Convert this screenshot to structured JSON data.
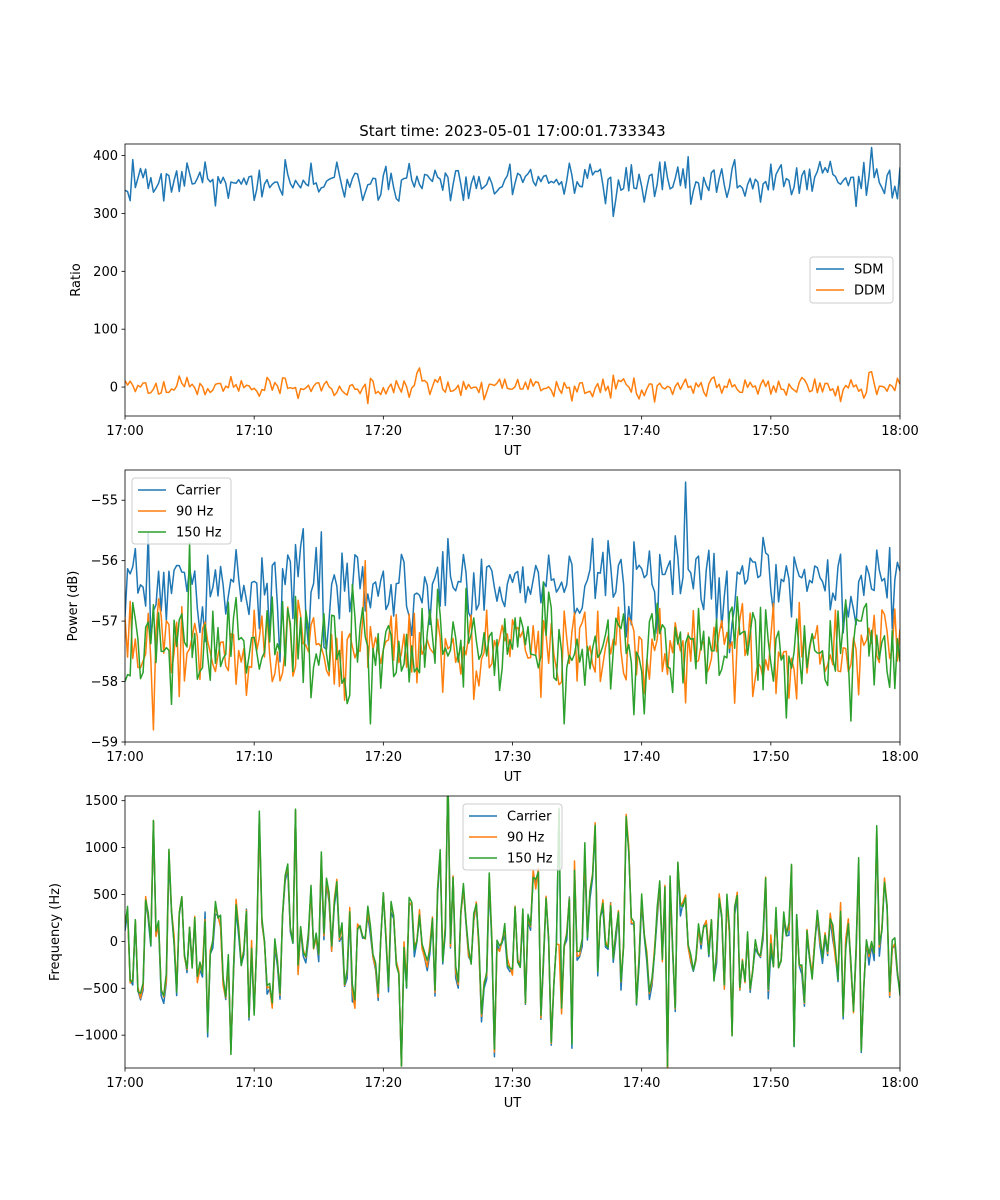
{
  "figure": {
    "title": "Start time: 2023-05-01 17:00:01.733343"
  },
  "colors": {
    "c0": "#1f77b4",
    "c1": "#ff7f0e",
    "c2": "#2ca02c"
  },
  "chart_data": [
    {
      "type": "line",
      "ylabel": "Ratio",
      "xlabel": "UT",
      "xlim": [
        "17:00",
        "18:00"
      ],
      "ylim": [
        -50,
        420
      ],
      "xticks": [
        "17:00",
        "17:10",
        "17:20",
        "17:30",
        "17:40",
        "17:50",
        "18:00"
      ],
      "yticks": [
        0,
        100,
        200,
        300,
        400
      ],
      "legend": "center-right",
      "n_points": 301,
      "series": [
        {
          "name": "SDM",
          "color": "#1f77b4",
          "mean": 355,
          "std": 16,
          "peaks": [
            {
              "t": "17:00:40",
              "v": 393
            },
            {
              "t": "17:07:00",
              "v": 313
            },
            {
              "t": "17:43:30",
              "v": 398
            },
            {
              "t": "17:43:50",
              "v": 316
            }
          ]
        },
        {
          "name": "DDM",
          "color": "#ff7f0e",
          "mean": 0,
          "std": 9,
          "peaks": [
            {
              "t": "17:22:50",
              "v": 33
            },
            {
              "t": "17:34:30",
              "v": -24
            },
            {
              "t": "17:57:30",
              "v": 25
            }
          ]
        }
      ]
    },
    {
      "type": "line",
      "ylabel": "Power (dB)",
      "xlabel": "UT",
      "xlim": [
        "17:00",
        "18:00"
      ],
      "ylim": [
        -59,
        -54.5
      ],
      "xticks": [
        "17:00",
        "17:10",
        "17:20",
        "17:30",
        "17:40",
        "17:50",
        "18:00"
      ],
      "yticks": [
        -59,
        -58,
        -57,
        -56,
        -55
      ],
      "legend": "top-left",
      "n_points": 301,
      "series": [
        {
          "name": "Carrier",
          "color": "#1f77b4",
          "mean": -56.4,
          "std": 0.4,
          "peaks": [
            {
              "t": "17:43:20",
              "v": -54.7
            },
            {
              "t": "17:02:00",
              "v": -57.3
            }
          ]
        },
        {
          "name": "90 Hz",
          "color": "#ff7f0e",
          "mean": -57.45,
          "std": 0.35,
          "peaks": [
            {
              "t": "17:02:10",
              "v": -58.8
            },
            {
              "t": "17:18:30",
              "v": -56.0
            }
          ]
        },
        {
          "name": "150 Hz",
          "color": "#2ca02c",
          "mean": -57.4,
          "std": 0.4,
          "peaks": [
            {
              "t": "17:05:00",
              "v": -55.7
            },
            {
              "t": "17:19:00",
              "v": -58.7
            },
            {
              "t": "17:34:00",
              "v": -58.7
            }
          ]
        }
      ]
    },
    {
      "type": "line",
      "ylabel": "Frequency (Hz)",
      "xlabel": "UT",
      "xlim": [
        "17:00",
        "18:00"
      ],
      "ylim": [
        -1350,
        1550
      ],
      "xticks": [
        "17:00",
        "17:10",
        "17:20",
        "17:30",
        "17:40",
        "17:50",
        "18:00"
      ],
      "yticks": [
        -1000,
        -500,
        0,
        500,
        1000,
        1500
      ],
      "legend": "top-center",
      "n_points": 301,
      "series": [
        {
          "name": "Carrier",
          "color": "#1f77b4",
          "mean": -30,
          "std": 380,
          "peaks": [
            {
              "t": "17:02:10",
              "v": 1280
            },
            {
              "t": "17:13:10",
              "v": 1390
            },
            {
              "t": "17:28:30",
              "v": -1230
            },
            {
              "t": "17:33:40",
              "v": 1390
            }
          ]
        },
        {
          "name": "90 Hz",
          "color": "#ff7f0e",
          "mean": 0,
          "std": 380,
          "peaks": [
            {
              "t": "17:02:10",
              "v": 1285
            },
            {
              "t": "17:13:10",
              "v": 1400
            },
            {
              "t": "17:28:30",
              "v": -1180
            }
          ]
        },
        {
          "name": "150 Hz",
          "color": "#2ca02c",
          "mean": 10,
          "std": 380,
          "peaks": [
            {
              "t": "17:02:10",
              "v": 1290
            },
            {
              "t": "17:13:10",
              "v": 1410
            },
            {
              "t": "17:28:30",
              "v": -1150
            },
            {
              "t": "17:33:40",
              "v": 1420
            }
          ]
        }
      ]
    }
  ]
}
